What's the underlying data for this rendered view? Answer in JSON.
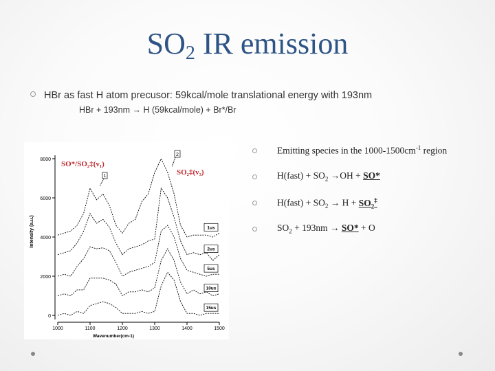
{
  "title": {
    "main": "SO",
    "sub": "2",
    "rest": " IR emission"
  },
  "bullet1": "HBr as fast H atom precusor: 59kcal/mole translational energy with 193nm",
  "bullet1_sub": "HBr + 193nm → H (59kcal/mole) + Br*/Br",
  "right_list": {
    "item1": {
      "text": "Emitting species in the 1000-1500cm",
      "sup": "-1",
      "tail": " region"
    },
    "item2": {
      "a": "H(fast) + SO",
      "sub": "2",
      "b": " →OH + ",
      "u": "SO*"
    },
    "item3": {
      "a": "H(fast) + SO",
      "sub": "2",
      "b": " → H + ",
      "u": "SO",
      "usub": "2",
      "usup": "‡"
    },
    "item4": {
      "a": "SO",
      "sub": "2",
      "b": " + 193nm → ",
      "u": "SO*",
      "c": " + O"
    }
  },
  "chart_data": {
    "type": "line",
    "xlabel": "Wavenumber(cm-1)",
    "ylabel": "Intensity (a.u.)",
    "xlim": [
      1000,
      1500
    ],
    "ylim": [
      0,
      8000
    ],
    "xticks": [
      1000,
      1100,
      1200,
      1300,
      1400,
      1500
    ],
    "yticks": [
      0,
      2000,
      4000,
      6000,
      8000
    ],
    "annotations": {
      "left": "SO*/SO₂‡(v₁)",
      "right": "SO₂‡(v₃)",
      "marker1": "1",
      "marker2": "2"
    },
    "x": [
      1000,
      1020,
      1040,
      1060,
      1080,
      1100,
      1120,
      1140,
      1160,
      1180,
      1200,
      1220,
      1240,
      1260,
      1280,
      1300,
      1320,
      1340,
      1360,
      1380,
      1400,
      1420,
      1440,
      1460,
      1480,
      1500
    ],
    "series": [
      {
        "name": "1us",
        "values": [
          4100,
          4200,
          4300,
          4600,
          5200,
          6500,
          5900,
          6200,
          5600,
          4600,
          4200,
          4700,
          4900,
          5800,
          6200,
          7300,
          8000,
          7300,
          6200,
          4600,
          4000,
          4100,
          4100,
          4100,
          4000,
          4200
        ]
      },
      {
        "name": "2us",
        "values": [
          3100,
          3200,
          3300,
          3700,
          4300,
          5200,
          4700,
          4900,
          4500,
          3700,
          3100,
          3400,
          3500,
          3600,
          3800,
          3900,
          6500,
          6000,
          5000,
          3800,
          3100,
          3200,
          3100,
          3200,
          2800,
          3100
        ]
      },
      {
        "name": "5us",
        "values": [
          2000,
          2100,
          2000,
          2500,
          2900,
          3500,
          3400,
          3450,
          3300,
          2700,
          2000,
          2200,
          2300,
          2400,
          2500,
          2700,
          4300,
          4600,
          4000,
          2900,
          2300,
          2200,
          2100,
          2000,
          2100,
          2100
        ]
      },
      {
        "name": "10us",
        "values": [
          1000,
          1100,
          1000,
          1300,
          1300,
          1900,
          1900,
          1900,
          1800,
          1600,
          1000,
          1200,
          1200,
          1300,
          1200,
          1400,
          2800,
          3400,
          2800,
          1700,
          1100,
          1300,
          1100,
          1200,
          1000,
          1100
        ]
      },
      {
        "name": "15us",
        "values": [
          0,
          100,
          0,
          200,
          100,
          500,
          600,
          700,
          600,
          400,
          100,
          100,
          100,
          200,
          100,
          200,
          1500,
          2200,
          1800,
          700,
          100,
          100,
          0,
          100,
          100,
          100
        ]
      }
    ],
    "annotation_color": "#c0282d"
  }
}
